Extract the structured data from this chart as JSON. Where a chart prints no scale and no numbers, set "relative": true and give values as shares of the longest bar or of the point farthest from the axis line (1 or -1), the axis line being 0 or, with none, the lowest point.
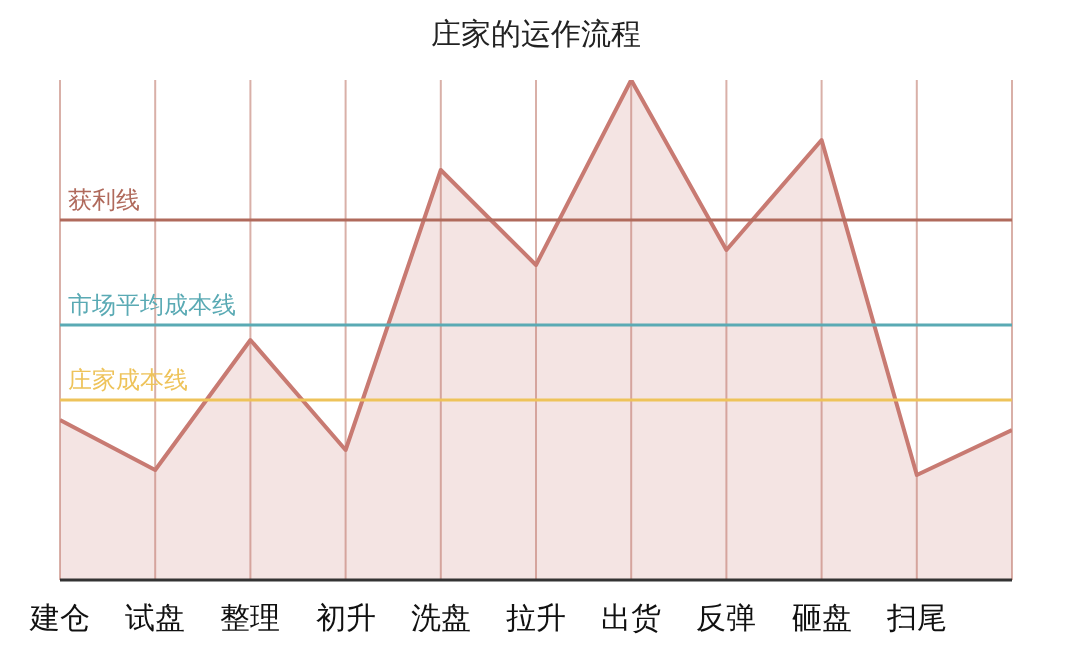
{
  "chart_data": {
    "type": "area",
    "title": "庄家的运作流程",
    "relative": true,
    "categories": [
      "建仓",
      "试盘",
      "整理",
      "初升",
      "洗盘",
      "拉升",
      "出货",
      "反弹",
      "砸盘",
      "扫尾",
      null
    ],
    "series": [
      {
        "color": "#c87a72",
        "values": [
          0.32,
          0.22,
          0.48,
          0.26,
          0.82,
          0.63,
          1,
          0.66,
          0.88,
          0.21,
          0.3
        ]
      }
    ],
    "ref_lines": [
      {
        "axis": "y",
        "value": 0.72,
        "label": "获利线",
        "color": "#b06a5c"
      },
      {
        "axis": "y",
        "value": 0.51,
        "label": "市场平均成本线",
        "color": "#5aaab4"
      },
      {
        "axis": "y",
        "value": 0.36,
        "label": "庄家成本线",
        "color": "#eec35a"
      }
    ],
    "grid": "x",
    "legend": false,
    "marker": "none",
    "line_style": "solid"
  }
}
